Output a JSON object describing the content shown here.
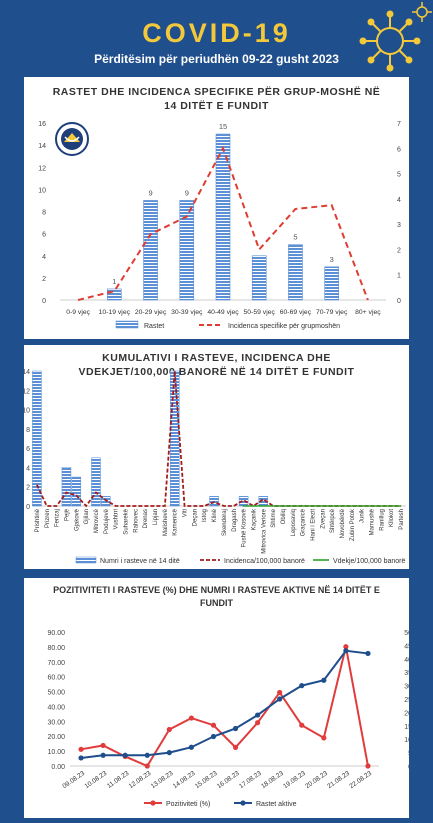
{
  "header": {
    "title": "COVID-19",
    "subtitle": "Përditësim për periudhën 09-22 gusht 2023",
    "colors": {
      "background": "#1f4f8c",
      "title": "#f3c93b",
      "virus": "#f3c93b"
    }
  },
  "chart_data": [
    {
      "type": "bar",
      "title_line1": "RASTET DHE INCIDENCA SPECIFIKE PËR GRUP-MOSHË NË",
      "title_line2": "14 DITËT E FUNDIT",
      "categories": [
        "0-9 vjeç",
        "10-19 vjeç",
        "20-29 vjeç",
        "30-39 vjeç",
        "40-49 vjeç",
        "50-59 vjeç",
        "60-69 vjeç",
        "70-79 vjeç",
        "80+ vjeç"
      ],
      "series": [
        {
          "name": "Rastet",
          "kind": "bar",
          "axis": "left",
          "color": "#5b8fd6",
          "values": [
            0,
            1,
            9,
            9,
            15,
            4,
            5,
            3,
            0
          ],
          "labels": [
            "",
            "1",
            "9",
            "9",
            "15",
            "",
            "5",
            "3",
            ""
          ]
        },
        {
          "name": "Incidenca specifike për grupmoshën",
          "kind": "line-dashed",
          "axis": "right",
          "color": "#e03c31",
          "values": [
            0,
            0.35,
            2.6,
            3.3,
            6.0,
            2.0,
            3.6,
            3.75,
            0
          ]
        }
      ],
      "yticks_left": [
        "0",
        "2",
        "4",
        "6",
        "8",
        "10",
        "12",
        "14",
        "16"
      ],
      "yticks_right": [
        "0",
        "1",
        "2",
        "3",
        "4",
        "5",
        "6",
        "7"
      ],
      "ylim_left": [
        0,
        16
      ],
      "ylim_right": [
        0,
        7
      ]
    },
    {
      "type": "bar",
      "title_line1": "KUMULATIVI I RASTEVE, INCIDENCA DHE",
      "title_line2": "VDEKJET/100,000 BANORË NË 14 DITËT E FUNDIT",
      "categories": [
        "Prishtinë",
        "Prizren",
        "Ferizaj",
        "Pejë",
        "Gjakovë",
        "Gjilan",
        "Mitrovicë",
        "Podujevë",
        "Vushtrri",
        "Suharekë",
        "Rahovec",
        "Drenas",
        "Lipjan",
        "Malishevë",
        "Kamenicë",
        "Viti",
        "Deçan",
        "Istog",
        "Klinë",
        "Skenderaj",
        "Dragash",
        "Fushë Kosovë",
        "Kaçanik",
        "Mitrovica Veriore",
        "Shtime",
        "Obiliq",
        "Leposaviq",
        "Graçanicë",
        "Hani i Elezit",
        "Zveçan",
        "Shtërpcë",
        "Novobërdë",
        "Zubin Potok",
        "Junik",
        "Mamushë",
        "Ranillug",
        "Kllokot",
        "Partesh"
      ],
      "series": [
        {
          "name": "Numri i rasteve në 14 ditë",
          "kind": "bar",
          "color": "#5b8fd6",
          "values": [
            14,
            0,
            0,
            4,
            3,
            0,
            5,
            1,
            0,
            0,
            0,
            0,
            0,
            0,
            14,
            0,
            0,
            0,
            1,
            0,
            0,
            1,
            0,
            1,
            0,
            0,
            0,
            0,
            0,
            0,
            0,
            0,
            0,
            0,
            0,
            0,
            0,
            0
          ]
        },
        {
          "name": "Incidenca/100,000 banorë",
          "kind": "line-dashed",
          "color": "#a61c1c",
          "values": [
            2.2,
            0,
            0,
            1.4,
            1.1,
            0,
            1.4,
            0.6,
            0,
            0,
            0,
            0,
            0,
            0,
            14,
            0,
            0,
            0,
            0.4,
            0,
            0,
            0.6,
            0,
            0.7,
            0,
            0,
            0,
            0,
            0,
            0,
            0,
            0,
            0,
            0,
            0,
            0,
            0,
            0
          ]
        },
        {
          "name": "Vdekje/100,000 banorë",
          "kind": "line",
          "color": "#2ca02c",
          "values": [
            0,
            0,
            0,
            0,
            0,
            0,
            0,
            0,
            0,
            0,
            0,
            0,
            0,
            0,
            0,
            0,
            0,
            0,
            0,
            0,
            0,
            0,
            0,
            0,
            0,
            0,
            0,
            0,
            0,
            0,
            0,
            0,
            0,
            0,
            0,
            0,
            0,
            0
          ]
        }
      ],
      "yticks": [
        "0",
        "2",
        "4",
        "6",
        "8",
        "10",
        "12",
        "14"
      ],
      "ylim": [
        0,
        14
      ]
    },
    {
      "type": "line",
      "title_line1": "POZITIVITETI I RASTEVE (%) DHE NUMRI I RASTEVE AKTIVE NË 14 DITËT E",
      "title_line2": "FUNDIT",
      "categories": [
        "09.08.23",
        "10.08.23",
        "11.08.23",
        "12.08.23",
        "13.08.23",
        "14.08.23",
        "15.08.23",
        "16.08.23",
        "17.08.23",
        "18.08.23",
        "19.08.23",
        "20.08.23",
        "21.08.23",
        "22.08.23"
      ],
      "series": [
        {
          "name": "Pozitiviteti (%)",
          "axis": "left",
          "color": "#e03c3c",
          "values": [
            11.2,
            13.8,
            6.4,
            0,
            24.5,
            32.2,
            27.4,
            12.5,
            29.1,
            49.4,
            27.4,
            18.9,
            80.1,
            0
          ]
        },
        {
          "name": "Rastet aktive",
          "axis": "right",
          "color": "#1f4e8c",
          "values": [
            3,
            4,
            4,
            4,
            5,
            7,
            11,
            14,
            19,
            25,
            30,
            32,
            43,
            42
          ]
        }
      ],
      "yticks_left": [
        "0.00",
        "10.00",
        "20.00",
        "30.00",
        "40.00",
        "50.00",
        "60.00",
        "70.00",
        "80.00",
        "90.00"
      ],
      "yticks_right": [
        "0",
        "5",
        "10",
        "15",
        "20",
        "25",
        "30",
        "35",
        "40",
        "45",
        "50"
      ],
      "ylim_left": [
        0,
        90
      ],
      "ylim_right": [
        0,
        50
      ]
    }
  ]
}
